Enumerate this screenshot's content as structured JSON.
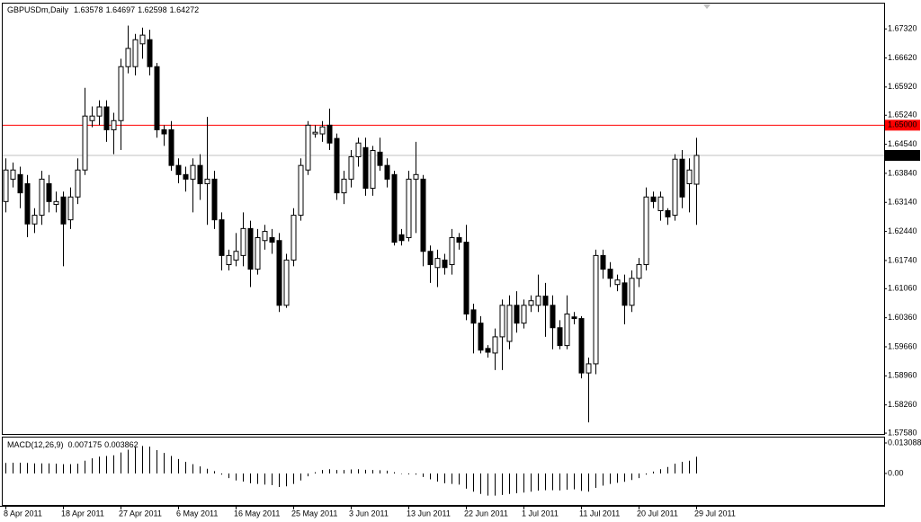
{
  "chart_data": [
    {
      "type": "candlestick",
      "title": "GBPUSDm,Daily",
      "categories": [
        "8 Apr 2011",
        null,
        null,
        null,
        null,
        null,
        null,
        null,
        "18 Apr 2011",
        null,
        null,
        null,
        null,
        null,
        null,
        null,
        "27 Apr 2011",
        null,
        null,
        null,
        null,
        null,
        null,
        null,
        "6 May 2011",
        null,
        null,
        null,
        null,
        null,
        null,
        null,
        "16 May 2011",
        null,
        null,
        null,
        null,
        null,
        null,
        null,
        "25 May 2011",
        null,
        null,
        null,
        null,
        null,
        null,
        null,
        "3 Jun 2011",
        null,
        null,
        null,
        null,
        null,
        null,
        null,
        "13 Jun 2011",
        null,
        null,
        null,
        null,
        null,
        null,
        null,
        "22 Jun 2011",
        null,
        null,
        null,
        null,
        null,
        null,
        null,
        "1 Jul 2011",
        null,
        null,
        null,
        null,
        null,
        null,
        null,
        "11 Jul 2011",
        null,
        null,
        null,
        null,
        null,
        null,
        null,
        "20 Jul 2011",
        null,
        null,
        null,
        null,
        null,
        null,
        null,
        "29 Jul 2011"
      ],
      "open": [
        1.6316,
        1.637,
        1.6381,
        1.6359,
        1.6262,
        1.6283,
        1.6359,
        1.6309,
        1.6327,
        1.6272,
        1.6327,
        1.6392,
        1.6511,
        1.6522,
        1.6544,
        1.6489,
        1.6511,
        1.6641,
        1.6641,
        1.6696,
        1.6706,
        1.6641,
        1.6489,
        1.6489,
        1.6403,
        1.6381,
        1.637,
        1.6403,
        1.6359,
        1.637,
        1.6272,
        1.6164,
        1.6175,
        1.6186,
        1.6251,
        1.6153,
        1.6222,
        1.6229,
        1.6222,
        1.6066,
        1.6175,
        1.6283,
        1.6392,
        1.6479,
        1.6479,
        1.65,
        1.6468,
        1.6337,
        1.637,
        1.6424,
        1.6446,
        1.6348,
        1.6435,
        1.6403,
        1.6381,
        1.6236,
        1.6229,
        1.637,
        1.637,
        1.6196,
        1.6157,
        1.6175,
        1.6164,
        1.6229,
        1.6218,
        1.6055,
        1.6023,
        1.5962,
        1.5951,
        1.599,
        1.5979,
        1.6066,
        1.6023,
        1.6066,
        1.6066,
        1.6088,
        1.6066,
        1.6012,
        1.5969,
        1.6038,
        1.6034,
        1.5903,
        1.5925,
        1.6186,
        1.6153,
        1.6116,
        1.612,
        1.6066,
        1.6131,
        1.6164,
        1.6327,
        1.6294,
        1.6294,
        1.6283,
        1.6418,
        1.6359,
        1.63578
      ],
      "high": [
        1.642,
        1.641,
        1.64,
        1.638,
        1.63,
        1.639,
        1.638,
        1.634,
        1.634,
        1.635,
        1.642,
        1.659,
        1.6545,
        1.656,
        1.656,
        1.653,
        1.666,
        1.674,
        1.672,
        1.6735,
        1.673,
        1.665,
        1.65,
        1.651,
        1.642,
        1.64,
        1.642,
        1.643,
        1.652,
        1.639,
        1.629,
        1.62,
        1.624,
        1.629,
        1.627,
        1.625,
        1.626,
        1.625,
        1.624,
        1.619,
        1.63,
        1.642,
        1.651,
        1.65,
        1.651,
        1.654,
        1.648,
        1.639,
        1.644,
        1.647,
        1.647,
        1.645,
        1.647,
        1.642,
        1.639,
        1.625,
        1.639,
        1.646,
        1.638,
        1.621,
        1.62,
        1.619,
        1.625,
        1.624,
        1.626,
        1.607,
        1.604,
        1.597,
        1.601,
        1.608,
        1.609,
        1.61,
        1.608,
        1.609,
        1.614,
        1.612,
        1.609,
        1.603,
        1.609,
        1.605,
        1.604,
        1.594,
        1.62,
        1.62,
        1.617,
        1.614,
        1.614,
        1.615,
        1.618,
        1.635,
        1.634,
        1.634,
        1.63,
        1.643,
        1.644,
        1.642,
        1.64697
      ],
      "low": [
        1.629,
        1.635,
        1.63,
        1.623,
        1.624,
        1.626,
        1.629,
        1.629,
        1.616,
        1.625,
        1.631,
        1.638,
        1.6495,
        1.65,
        1.646,
        1.643,
        1.644,
        1.6625,
        1.662,
        1.666,
        1.662,
        1.647,
        1.645,
        1.639,
        1.636,
        1.634,
        1.629,
        1.632,
        1.626,
        1.625,
        1.615,
        1.615,
        1.616,
        1.616,
        1.611,
        1.614,
        1.62,
        1.619,
        1.605,
        1.606,
        1.616,
        1.627,
        1.638,
        1.647,
        1.646,
        1.644,
        1.632,
        1.631,
        1.635,
        1.64,
        1.633,
        1.633,
        1.639,
        1.635,
        1.621,
        1.621,
        1.622,
        1.624,
        1.616,
        1.612,
        1.611,
        1.614,
        1.614,
        1.62,
        1.603,
        1.595,
        1.595,
        1.594,
        1.591,
        1.591,
        1.596,
        1.6,
        1.601,
        1.605,
        1.605,
        1.599,
        1.596,
        1.596,
        1.596,
        1.602,
        1.589,
        1.5784,
        1.59,
        1.613,
        1.611,
        1.61,
        1.602,
        1.605,
        1.611,
        1.615,
        1.63,
        1.627,
        1.626,
        1.627,
        1.63,
        1.629,
        1.62598
      ],
      "close": [
        1.6392,
        1.6392,
        1.6337,
        1.6262,
        1.6283,
        1.637,
        1.6316,
        1.6316,
        1.6262,
        1.6327,
        1.6392,
        1.6522,
        1.6522,
        1.6544,
        1.6489,
        1.6511,
        1.6641,
        1.6685,
        1.6706,
        1.6717,
        1.6641,
        1.6489,
        1.6479,
        1.6403,
        1.6381,
        1.637,
        1.6403,
        1.6359,
        1.637,
        1.6272,
        1.6186,
        1.6186,
        1.6196,
        1.6251,
        1.6153,
        1.6229,
        1.6244,
        1.6218,
        1.6066,
        1.6175,
        1.6283,
        1.6403,
        1.65,
        1.6483,
        1.6496,
        1.6457,
        1.6337,
        1.637,
        1.6424,
        1.6457,
        1.6348,
        1.6439,
        1.6403,
        1.637,
        1.6218,
        1.6222,
        1.637,
        1.6381,
        1.6196,
        1.6164,
        1.6179,
        1.6157,
        1.6229,
        1.6218,
        1.6045,
        1.6023,
        1.5958,
        1.5953,
        1.599,
        1.6066,
        1.6066,
        1.6023,
        1.6066,
        1.6077,
        1.6088,
        1.6066,
        1.6012,
        1.5969,
        1.6045,
        1.6034,
        1.5903,
        1.5925,
        1.6186,
        1.6153,
        1.6131,
        1.6127,
        1.6066,
        1.6131,
        1.6164,
        1.6327,
        1.6316,
        1.6327,
        1.6279,
        1.6418,
        1.6327,
        1.6392,
        1.64272
      ],
      "up_color": "#ffffff",
      "down_color": "#000000",
      "ylim": [
        1.5756,
        1.6793
      ],
      "yticks": [
        {
          "value": 1.6732,
          "label": "1.67320"
        },
        {
          "value": 1.6662,
          "label": "1.66620"
        },
        {
          "value": 1.6592,
          "label": "1.65920"
        },
        {
          "value": 1.6524,
          "label": "1.65240"
        },
        {
          "value": 1.6454,
          "label": "1.64540"
        },
        {
          "value": 1.6384,
          "label": "1.63840"
        },
        {
          "value": 1.6314,
          "label": "1.63140"
        },
        {
          "value": 1.6244,
          "label": "1.62440"
        },
        {
          "value": 1.6174,
          "label": "1.61740"
        },
        {
          "value": 1.6106,
          "label": "1.61060"
        },
        {
          "value": 1.6036,
          "label": "1.60360"
        },
        {
          "value": 1.5966,
          "label": "1.59660"
        },
        {
          "value": 1.5896,
          "label": "1.58960"
        },
        {
          "value": 1.5826,
          "label": "1.58260"
        },
        {
          "value": 1.5758,
          "label": "1.57580"
        }
      ],
      "hlines": [
        {
          "value": 1.65,
          "label": "1.65000",
          "color": "#ff0000"
        }
      ]
    },
    {
      "type": "bar",
      "title": "MACD(12,26,9)",
      "values": [
        0.0045,
        0.0046,
        0.0046,
        0.0045,
        0.0043,
        0.0043,
        0.0043,
        0.0042,
        0.004,
        0.004,
        0.0042,
        0.0055,
        0.0065,
        0.0072,
        0.0075,
        0.0078,
        0.009,
        0.0102,
        0.0112,
        0.0118,
        0.0115,
        0.01,
        0.0088,
        0.0075,
        0.0062,
        0.005,
        0.004,
        0.003,
        0.002,
        0.001,
        -0.0005,
        -0.002,
        -0.003,
        -0.0035,
        -0.0042,
        -0.0045,
        -0.0048,
        -0.005,
        -0.0058,
        -0.0055,
        -0.0045,
        -0.003,
        -0.0012,
        0.0005,
        0.0015,
        0.0018,
        0.0015,
        0.0015,
        0.0017,
        0.0018,
        0.0016,
        0.0015,
        0.0014,
        0.0012,
        0.0005,
        -0.0002,
        -0.0004,
        -0.0005,
        -0.0015,
        -0.0025,
        -0.0035,
        -0.0042,
        -0.0045,
        -0.0048,
        -0.0065,
        -0.0078,
        -0.0088,
        -0.0095,
        -0.0095,
        -0.0092,
        -0.0088,
        -0.0085,
        -0.0082,
        -0.0078,
        -0.0074,
        -0.0072,
        -0.0072,
        -0.0073,
        -0.007,
        -0.0068,
        -0.0075,
        -0.0078,
        -0.0062,
        -0.0052,
        -0.0045,
        -0.004,
        -0.0036,
        -0.0028,
        -0.002,
        -0.0005,
        0.0008,
        0.0018,
        0.0028,
        0.0042,
        0.005,
        0.0055,
        0.007175
      ],
      "signal": 0.003862,
      "color": "#000000",
      "ylim": [
        -0.0135,
        0.0154
      ],
      "yticks": [
        0.013088,
        {
          "value": 0,
          "label": "0.00"
        }
      ]
    }
  ]
}
